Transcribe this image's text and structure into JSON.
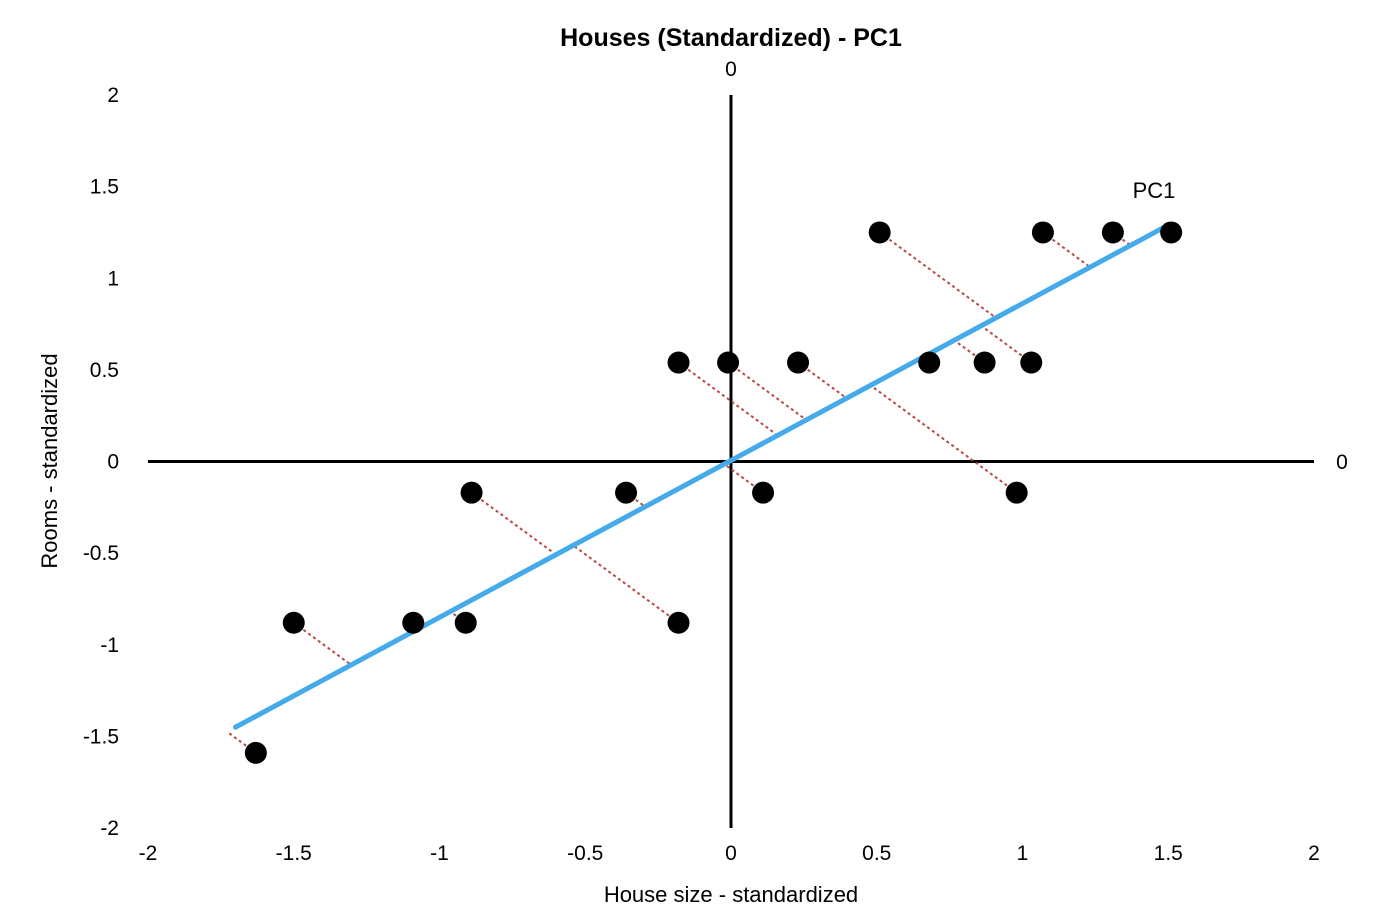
{
  "chart_data": {
    "type": "scatter",
    "title": "Houses (Standardized) - PC1",
    "xlabel": "House size - standardized",
    "ylabel": "Rooms - standardized",
    "xlim": [
      -2,
      2
    ],
    "ylim": [
      -2,
      2
    ],
    "x_ticks": [
      "-2",
      "-1.5",
      "-1",
      "-0.5",
      "0",
      "0.5",
      "1",
      "1.5",
      "2"
    ],
    "y_ticks": [
      "2",
      "1.5",
      "1",
      "0.5",
      "0",
      "-0.5",
      "-1",
      "-1.5",
      "-2"
    ],
    "x_tick_values": [
      -2,
      -1.5,
      -1,
      -0.5,
      0,
      0.5,
      1,
      1.5,
      2
    ],
    "y_tick_values": [
      2,
      1.5,
      1,
      0.5,
      0,
      -0.5,
      -1,
      -1.5,
      -2
    ],
    "origin_axis_labels": {
      "vertical": "0",
      "horizontal": "0"
    },
    "grid": false,
    "series": [
      {
        "values": [
          {
            "x": -1.63,
            "y": -1.59
          },
          {
            "x": -1.5,
            "y": -0.88
          },
          {
            "x": -1.09,
            "y": -0.88
          },
          {
            "x": -0.91,
            "y": -0.88
          },
          {
            "x": -0.89,
            "y": -0.17
          },
          {
            "x": -0.36,
            "y": -0.17
          },
          {
            "x": -0.18,
            "y": -0.88
          },
          {
            "x": -0.18,
            "y": 0.54
          },
          {
            "x": -0.01,
            "y": 0.54
          },
          {
            "x": 0.11,
            "y": -0.17
          },
          {
            "x": 0.23,
            "y": 0.54
          },
          {
            "x": 0.51,
            "y": 1.25
          },
          {
            "x": 0.68,
            "y": 0.54
          },
          {
            "x": 0.87,
            "y": 0.54
          },
          {
            "x": 0.98,
            "y": -0.17
          },
          {
            "x": 1.03,
            "y": 0.54
          },
          {
            "x": 1.07,
            "y": 1.25
          },
          {
            "x": 1.31,
            "y": 1.25
          },
          {
            "x": 1.51,
            "y": 1.25
          }
        ]
      }
    ],
    "pc1_line": {
      "label": "PC1",
      "from": {
        "x": -1.7,
        "y": -1.45
      },
      "to": {
        "x": 1.5,
        "y": 1.29
      }
    },
    "projection_lines": true,
    "colors": {
      "points": "#000000",
      "pc1_line": "#44aaea",
      "projection_lines": "#b84a44",
      "axes": "#000000"
    }
  }
}
